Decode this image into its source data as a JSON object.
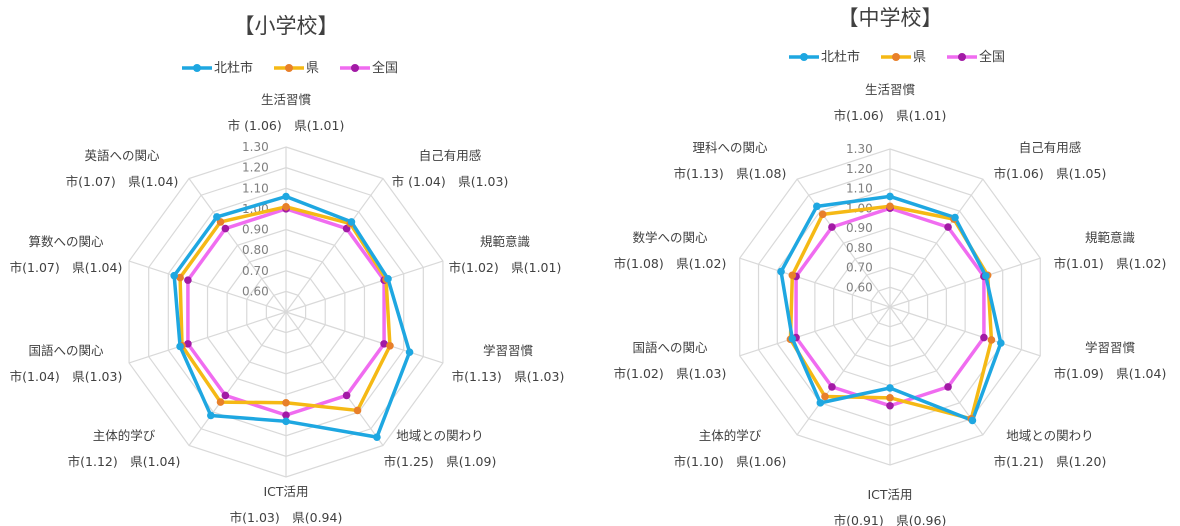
{
  "colors": {
    "北杜市": "#1ea7e1",
    "県": "#f5b915",
    "全国": "#f06cf0",
    "県_marker": "#e8802a",
    "全国_marker": "#a21aa5"
  },
  "chart_data": [
    {
      "type": "radar",
      "title": "【小学校】",
      "rlim": [
        0.5,
        1.3
      ],
      "ticks": [
        "0.60",
        "0.70",
        "0.80",
        "0.90",
        "1.00",
        "1.10",
        "1.20",
        "1.30"
      ],
      "legend_position": "top",
      "categories": [
        {
          "name": "生活習慣",
          "values_label": "市 (1.06)　県(1.01)"
        },
        {
          "name": "自己有用感",
          "values_label": "市 (1.04)　県(1.03)"
        },
        {
          "name": "規範意識",
          "values_label": "市(1.02)　県(1.01)"
        },
        {
          "name": "学習習慣",
          "values_label": "市(1.13)　県(1.03)"
        },
        {
          "name": "地域との関わり",
          "values_label": "市(1.25)　県(1.09)"
        },
        {
          "name": "ICT活用",
          "values_label": "市(1.03)　県(0.94)"
        },
        {
          "name": "主体的学び",
          "values_label": "市(1.12)　県(1.04)"
        },
        {
          "name": "国語への関心",
          "values_label": "市(1.04)　県(1.03)"
        },
        {
          "name": "算数への関心",
          "values_label": "市(1.07)　県(1.04)"
        },
        {
          "name": "英語への関心",
          "values_label": "市(1.07)　県(1.04)"
        }
      ],
      "series": [
        {
          "name": "北杜市",
          "values": [
            1.06,
            1.04,
            1.02,
            1.13,
            1.25,
            1.03,
            1.12,
            1.04,
            1.07,
            1.07
          ]
        },
        {
          "name": "県",
          "values": [
            1.01,
            1.03,
            1.01,
            1.03,
            1.09,
            0.94,
            1.04,
            1.03,
            1.04,
            1.04
          ]
        },
        {
          "name": "全国",
          "values": [
            1.0,
            1.0,
            1.0,
            1.0,
            1.0,
            1.0,
            1.0,
            1.0,
            1.0,
            1.0
          ]
        }
      ]
    },
    {
      "type": "radar",
      "title": "【中学校】",
      "rlim": [
        0.5,
        1.3
      ],
      "ticks": [
        "0.60",
        "0.70",
        "0.80",
        "0.90",
        "1.00",
        "1.10",
        "1.20",
        "1.30"
      ],
      "legend_position": "top",
      "categories": [
        {
          "name": "生活習慣",
          "values_label": "市(1.06)　県(1.01)"
        },
        {
          "name": "自己有用感",
          "values_label": "市(1.06)　県(1.05)"
        },
        {
          "name": "規範意識",
          "values_label": "市(1.01)　県(1.02)"
        },
        {
          "name": "学習習慣",
          "values_label": "市(1.09)　県(1.04)"
        },
        {
          "name": "地域との関わり",
          "values_label": "市(1.21)　県(1.20)"
        },
        {
          "name": "ICT活用",
          "values_label": "市(0.91)　県(0.96)"
        },
        {
          "name": "主体的学び",
          "values_label": "市(1.10)　県(1.06)"
        },
        {
          "name": "国語への関心",
          "values_label": "市(1.02)　県(1.03)"
        },
        {
          "name": "数学への関心",
          "values_label": "市(1.08)　県(1.02)"
        },
        {
          "name": "理科への関心",
          "values_label": "市(1.13)　県(1.08)"
        }
      ],
      "series": [
        {
          "name": "北杜市",
          "values": [
            1.06,
            1.06,
            1.01,
            1.09,
            1.21,
            0.91,
            1.1,
            1.02,
            1.08,
            1.13
          ]
        },
        {
          "name": "県",
          "values": [
            1.01,
            1.05,
            1.02,
            1.04,
            1.2,
            0.96,
            1.06,
            1.03,
            1.02,
            1.08
          ]
        },
        {
          "name": "全国",
          "values": [
            1.0,
            1.0,
            1.0,
            1.0,
            1.0,
            1.0,
            1.0,
            1.0,
            1.0,
            1.0
          ]
        }
      ]
    }
  ]
}
